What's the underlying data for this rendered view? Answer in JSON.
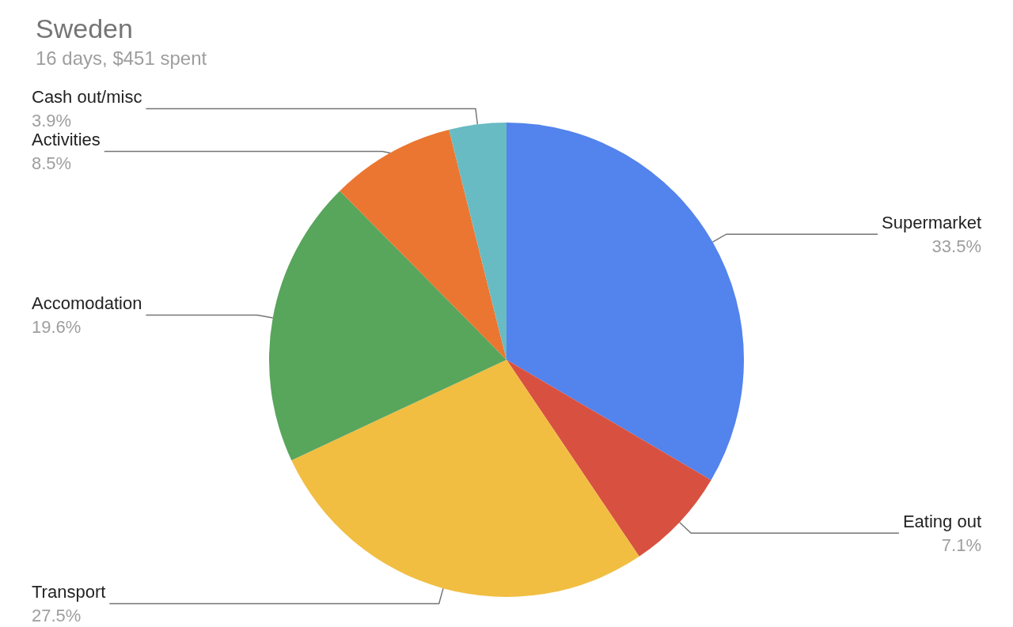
{
  "chart_data": {
    "type": "pie",
    "title": "Sweden",
    "subtitle": "16 days, $451 spent",
    "categories": [
      "Supermarket",
      "Eating out",
      "Transport",
      "Accomodation",
      "Activities",
      "Cash out/misc"
    ],
    "values": [
      33.5,
      7.1,
      27.5,
      19.6,
      8.5,
      3.9
    ],
    "value_labels": [
      "33.5%",
      "7.1%",
      "27.5%",
      "19.6%",
      "8.5%",
      "3.9%"
    ],
    "colors": [
      "#5383ec",
      "#d85140",
      "#f1be42",
      "#58a55c",
      "#eb7631",
      "#68bbc3"
    ]
  }
}
